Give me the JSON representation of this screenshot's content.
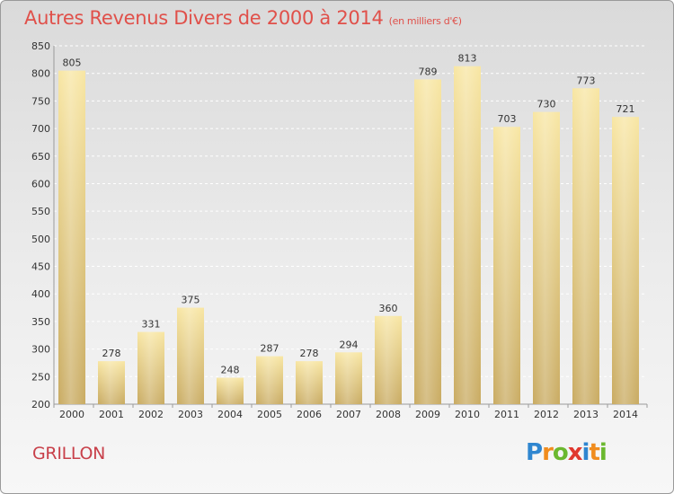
{
  "header": {
    "title": "Autres Revenus Divers de 2000 à 2014",
    "unit": "(en milliers d'€)"
  },
  "footer": {
    "commune": "GRILLON",
    "brand_letters": [
      "P",
      "r",
      "o",
      "x",
      "i",
      "t",
      "i"
    ],
    "brand_colors": [
      "#2f86d0",
      "#f08c1e",
      "#6bb82f",
      "#e0382f",
      "#2f86d0",
      "#f08c1e",
      "#6bb82f"
    ]
  },
  "colors": {
    "bar_light": "#f8e6a3",
    "bar_dark": "#c9ab62",
    "grid": "#ffffff",
    "text": "#333333",
    "title": "#e0504a",
    "commune": "#c8404a"
  },
  "chart_data": {
    "type": "bar",
    "title": "Autres Revenus Divers de 2000 à 2014",
    "subtitle": "(en milliers d'€)",
    "xlabel": "",
    "ylabel": "",
    "categories": [
      "2000",
      "2001",
      "2002",
      "2003",
      "2004",
      "2005",
      "2006",
      "2007",
      "2008",
      "2009",
      "2010",
      "2011",
      "2012",
      "2013",
      "2014"
    ],
    "values": [
      805,
      278,
      331,
      375,
      248,
      287,
      278,
      294,
      360,
      789,
      813,
      703,
      730,
      773,
      721
    ],
    "ylim": [
      200,
      850
    ],
    "yticks": [
      200,
      250,
      300,
      350,
      400,
      450,
      500,
      550,
      600,
      650,
      700,
      750,
      800,
      850
    ],
    "grid": true,
    "data_labels": true
  }
}
